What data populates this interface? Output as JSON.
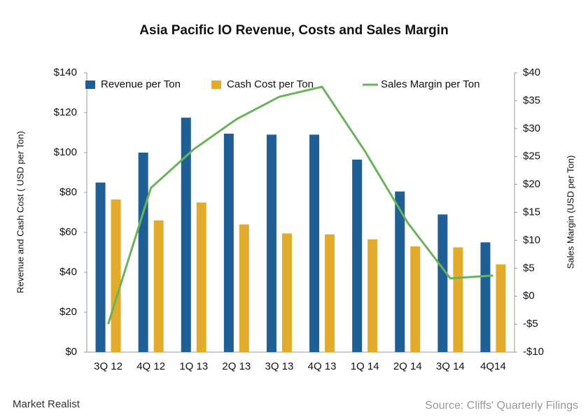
{
  "chart_data": {
    "type": "bar_line",
    "title": "Asia Pacific IO Revenue, Costs and Sales Margin",
    "y_label": "Revenue and Cash Cost ( USD per Ton)",
    "y2_label": "Sales Margin (USD per Ton)",
    "categories": [
      "3Q 12",
      "4Q 12",
      "1Q 13",
      "2Q 13",
      "3Q 13",
      "4Q 13",
      "1Q 14",
      "2Q 14",
      "3Q 14",
      "4Q14"
    ],
    "series": [
      {
        "name": "Revenue per Ton",
        "type": "bar",
        "color": "#1f5f96",
        "values": [
          85,
          100,
          117.5,
          109.5,
          109,
          109,
          96.5,
          80.5,
          69,
          55
        ]
      },
      {
        "name": "Cash Cost per Ton",
        "type": "bar",
        "color": "#e3ab2b",
        "values": [
          76.5,
          66,
          75,
          64,
          59.5,
          59,
          56.5,
          53,
          52.5,
          44
        ]
      },
      {
        "name": "Sales Margin per Ton",
        "type": "line",
        "axis": "y2",
        "color": "#6bb35a",
        "values": [
          -5,
          19.4,
          26.3,
          31.7,
          35.7,
          37.5,
          26,
          13.2,
          3.2,
          3.7
        ]
      }
    ],
    "ylim": [
      0,
      140
    ],
    "yticks": [
      {
        "value": 0,
        "label": "$0"
      },
      {
        "value": 20,
        "label": "$20"
      },
      {
        "value": 40,
        "label": "$40"
      },
      {
        "value": 60,
        "label": "$60"
      },
      {
        "value": 80,
        "label": "$80"
      },
      {
        "value": 100,
        "label": "$100"
      },
      {
        "value": 120,
        "label": "$120"
      },
      {
        "value": 140,
        "label": "$140"
      }
    ],
    "y2lim": [
      -10,
      40
    ],
    "y2ticks": [
      {
        "value": -10,
        "label": "-$10"
      },
      {
        "value": -5,
        "label": "-$5"
      },
      {
        "value": 0,
        "label": "$0"
      },
      {
        "value": 5,
        "label": "$5"
      },
      {
        "value": 10,
        "label": "$10"
      },
      {
        "value": 15,
        "label": "$15"
      },
      {
        "value": 20,
        "label": "$20"
      },
      {
        "value": 25,
        "label": "$25"
      },
      {
        "value": 30,
        "label": "$30"
      },
      {
        "value": 35,
        "label": "$35"
      },
      {
        "value": 40,
        "label": "$40"
      }
    ],
    "legend": "top",
    "grid": false
  },
  "footer": {
    "brand": "Market Realist",
    "source": "Source: Cliffs' Quarterly Filings"
  }
}
